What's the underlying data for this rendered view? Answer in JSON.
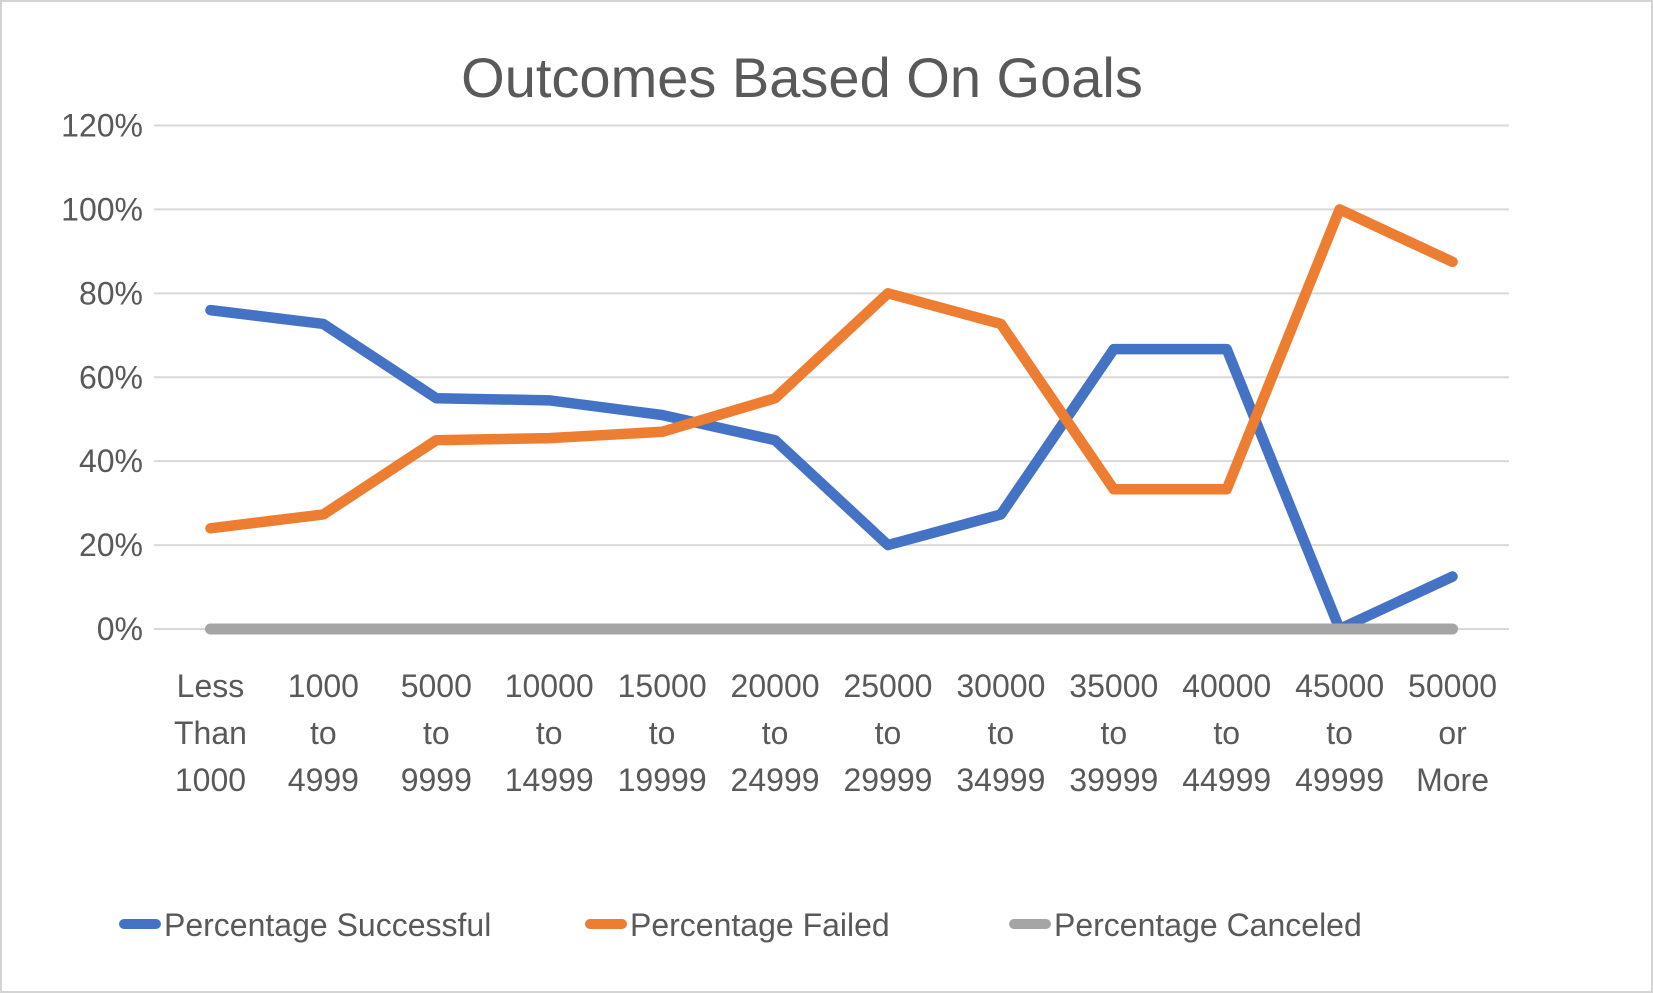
{
  "chart": {
    "title": "Outcomes Based On Goals"
  },
  "chart_data": {
    "type": "line",
    "title": "Outcomes Based On Goals",
    "categories": [
      "Less Than 1000",
      "1000 to 4999",
      "5000 to 9999",
      "10000 to 14999",
      "15000 to 19999",
      "20000 to 24999",
      "25000 to 29999",
      "30000 to 34999",
      "35000 to 39999",
      "40000 to 44999",
      "45000 to 49999",
      "50000 or More"
    ],
    "series": [
      {
        "name": "Percentage Successful",
        "color": "#4472C4",
        "values": [
          76,
          72.7,
          55,
          54.5,
          51,
          45,
          20,
          27.3,
          66.7,
          66.7,
          0,
          12.5
        ]
      },
      {
        "name": "Percentage Failed",
        "color": "#ED7D31",
        "values": [
          24,
          27.3,
          45,
          45.5,
          47,
          55,
          80,
          72.7,
          33.3,
          33.3,
          100,
          87.5
        ]
      },
      {
        "name": "Percentage Canceled",
        "color": "#A5A5A5",
        "values": [
          0,
          0,
          0,
          0,
          0,
          0,
          0,
          0,
          0,
          0,
          0,
          0
        ]
      }
    ],
    "ylim": [
      0,
      120
    ],
    "ytick_labels": [
      "0%",
      "20%",
      "40%",
      "60%",
      "80%",
      "100%",
      "120%"
    ],
    "ytick_values": [
      0,
      20,
      40,
      60,
      80,
      100,
      120
    ],
    "grid": "horizontal",
    "legend_position": "bottom",
    "text_color": "#595959",
    "gridline_color": "#D9D9D9",
    "background_color": "#FFFFFF"
  }
}
